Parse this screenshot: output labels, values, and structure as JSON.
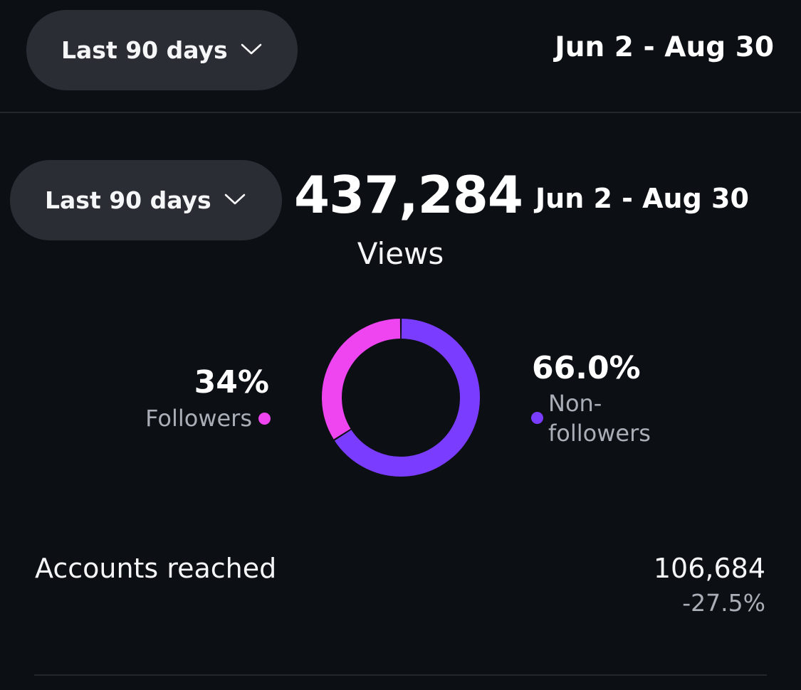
{
  "header": {
    "range_label": "Last 90 days",
    "date_range": "Jun 2 - Aug 30"
  },
  "summary": {
    "range_label": "Last 90 days",
    "total": "437,284",
    "date_range": "Jun 2 - Aug 30",
    "metric_label": "Views"
  },
  "breakdown": {
    "followers": {
      "percent_label": "34%",
      "label": "Followers",
      "share": 34.0,
      "color": "#ee45f0"
    },
    "non_followers": {
      "percent_label": "66.0%",
      "label": "Non-followers",
      "label_lines": [
        "Non-",
        "followers"
      ],
      "share": 66.0,
      "color": "#7a3cff"
    }
  },
  "reach": {
    "label": "Accounts reached",
    "value": "106,684",
    "change": "-27.5%"
  },
  "icons": {
    "dropdown": "chevron-down-icon"
  }
}
